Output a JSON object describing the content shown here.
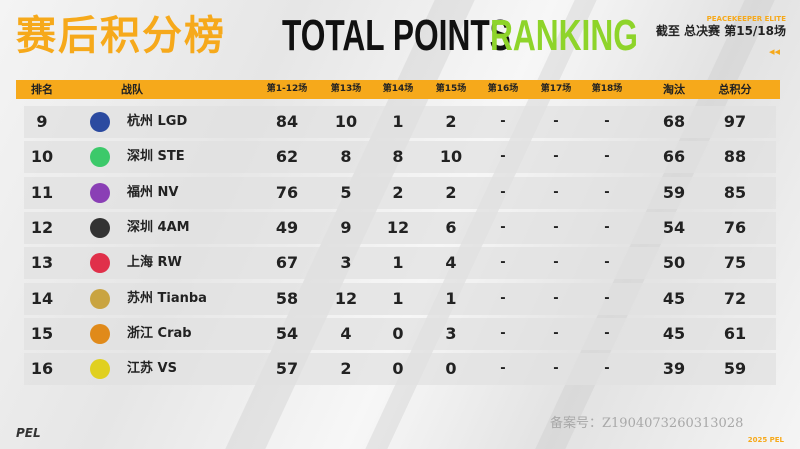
{
  "header": {
    "title_cn": "赛后积分榜",
    "title_en_1": "TOTAL POINTS",
    "title_en_2": "RANKING",
    "event": "PEACEKEEPER ELITE",
    "progress": "截至 总决赛 第15/18场",
    "arrows": "◂◂"
  },
  "columns": [
    "排名",
    "战队",
    "第1-12场",
    "第13场",
    "第14场",
    "第15场",
    "第16场",
    "第17场",
    "第18场",
    "淘汰",
    "总积分"
  ],
  "rows": [
    {
      "rank": "9",
      "team": "杭州 LGD",
      "logo": "lgd-logo",
      "scores": [
        "84",
        "10",
        "1",
        "2",
        "-",
        "-",
        "-"
      ],
      "elim": "68",
      "total": "97"
    },
    {
      "rank": "10",
      "team": "深圳 STE",
      "logo": "ste-logo",
      "scores": [
        "62",
        "8",
        "8",
        "10",
        "-",
        "-",
        "-"
      ],
      "elim": "66",
      "total": "88"
    },
    {
      "rank": "11",
      "team": "福州 NV",
      "logo": "nv-logo",
      "scores": [
        "76",
        "5",
        "2",
        "2",
        "-",
        "-",
        "-"
      ],
      "elim": "59",
      "total": "85"
    },
    {
      "rank": "12",
      "team": "深圳 4AM",
      "logo": "4am-logo",
      "scores": [
        "49",
        "9",
        "12",
        "6",
        "-",
        "-",
        "-"
      ],
      "elim": "54",
      "total": "76"
    },
    {
      "rank": "13",
      "team": "上海 RW",
      "logo": "rw-logo",
      "scores": [
        "67",
        "3",
        "1",
        "4",
        "-",
        "-",
        "-"
      ],
      "elim": "50",
      "total": "75"
    },
    {
      "rank": "14",
      "team": "苏州 Tianba",
      "logo": "tianba-logo",
      "scores": [
        "58",
        "12",
        "1",
        "1",
        "-",
        "-",
        "-"
      ],
      "elim": "45",
      "total": "72"
    },
    {
      "rank": "15",
      "team": "浙江 Crab",
      "logo": "crab-logo",
      "scores": [
        "54",
        "4",
        "0",
        "3",
        "-",
        "-",
        "-"
      ],
      "elim": "45",
      "total": "61"
    },
    {
      "rank": "16",
      "team": "江苏 VS",
      "logo": "vs-logo",
      "scores": [
        "57",
        "2",
        "0",
        "0",
        "-",
        "-",
        "-"
      ],
      "elim": "39",
      "total": "59"
    }
  ],
  "logo_colors": [
    "#2b4aa0",
    "#3cc96a",
    "#8a3fb5",
    "#333333",
    "#e0304a",
    "#c9a441",
    "#e08a1a",
    "#e0d020"
  ],
  "footer": {
    "watermark": "备案号：Z1904073260313028",
    "brand": "PEL",
    "year": "2025 PEL"
  },
  "colors": {
    "accent": "#f6a91b",
    "green": "#8ed42a"
  }
}
